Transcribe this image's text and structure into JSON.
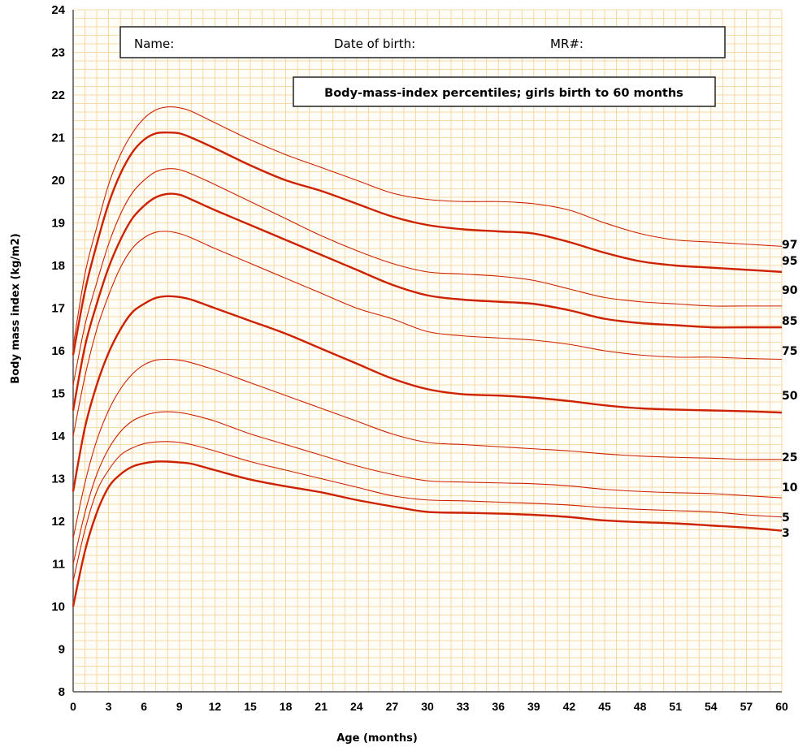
{
  "header": {
    "name_label": "Name:",
    "dob_label": "Date of birth:",
    "mr_label": "MR#:"
  },
  "chart_data": {
    "type": "line",
    "title": "Body-mass-index percentiles; girls birth to 60 months",
    "xlabel": "Age (months)",
    "ylabel": "Body  mass index  (kg/m2)",
    "xlim": [
      0,
      60
    ],
    "ylim": [
      8,
      24
    ],
    "x_ticks": [
      0,
      3,
      6,
      9,
      12,
      15,
      18,
      21,
      24,
      27,
      30,
      33,
      36,
      39,
      42,
      45,
      48,
      51,
      54,
      57,
      60
    ],
    "y_ticks": [
      8,
      9,
      10,
      11,
      12,
      13,
      14,
      15,
      16,
      17,
      18,
      19,
      20,
      21,
      22,
      23,
      24
    ],
    "grid": true,
    "grid_color": "#f5d090",
    "line_color": "#cc2200",
    "x": [
      0,
      1,
      2,
      3,
      4,
      5,
      6,
      7,
      8,
      9,
      10,
      12,
      15,
      18,
      21,
      24,
      27,
      30,
      33,
      36,
      39,
      42,
      45,
      48,
      51,
      54,
      57,
      60
    ],
    "series": [
      {
        "name": "97",
        "bold": false,
        "values": [
          16.1,
          17.8,
          18.9,
          19.9,
          20.6,
          21.1,
          21.45,
          21.65,
          21.72,
          21.7,
          21.62,
          21.35,
          20.95,
          20.6,
          20.3,
          20.0,
          19.7,
          19.55,
          19.5,
          19.5,
          19.45,
          19.3,
          19.0,
          18.75,
          18.6,
          18.55,
          18.5,
          18.45
        ]
      },
      {
        "name": "95",
        "bold": true,
        "values": [
          15.9,
          17.4,
          18.5,
          19.45,
          20.15,
          20.65,
          20.95,
          21.1,
          21.12,
          21.1,
          21.0,
          20.75,
          20.35,
          20.0,
          19.75,
          19.45,
          19.15,
          18.95,
          18.85,
          18.8,
          18.75,
          18.55,
          18.3,
          18.1,
          18.0,
          17.95,
          17.9,
          17.85
        ]
      },
      {
        "name": "90",
        "bold": false,
        "values": [
          15.2,
          16.6,
          17.6,
          18.5,
          19.2,
          19.7,
          20.0,
          20.2,
          20.27,
          20.25,
          20.15,
          19.9,
          19.5,
          19.1,
          18.7,
          18.35,
          18.05,
          17.85,
          17.8,
          17.75,
          17.65,
          17.45,
          17.25,
          17.15,
          17.1,
          17.05,
          17.05,
          17.05
        ]
      },
      {
        "name": "85",
        "bold": true,
        "values": [
          14.6,
          16.1,
          17.1,
          17.95,
          18.6,
          19.1,
          19.4,
          19.6,
          19.68,
          19.66,
          19.55,
          19.3,
          18.95,
          18.6,
          18.25,
          17.9,
          17.55,
          17.3,
          17.2,
          17.15,
          17.1,
          16.95,
          16.75,
          16.65,
          16.6,
          16.55,
          16.55,
          16.55
        ]
      },
      {
        "name": "75",
        "bold": false,
        "values": [
          14.0,
          15.4,
          16.5,
          17.3,
          17.95,
          18.4,
          18.65,
          18.78,
          18.8,
          18.75,
          18.65,
          18.4,
          18.05,
          17.7,
          17.35,
          17.0,
          16.75,
          16.45,
          16.35,
          16.3,
          16.25,
          16.15,
          16.0,
          15.9,
          15.85,
          15.85,
          15.82,
          15.8
        ]
      },
      {
        "name": "50",
        "bold": true,
        "values": [
          12.7,
          14.2,
          15.2,
          15.95,
          16.5,
          16.9,
          17.1,
          17.24,
          17.28,
          17.26,
          17.2,
          17.0,
          16.7,
          16.4,
          16.05,
          15.7,
          15.35,
          15.1,
          14.98,
          14.95,
          14.9,
          14.82,
          14.72,
          14.65,
          14.62,
          14.6,
          14.58,
          14.55
        ]
      },
      {
        "name": "25",
        "bold": false,
        "values": [
          11.6,
          12.9,
          13.9,
          14.6,
          15.1,
          15.45,
          15.67,
          15.78,
          15.8,
          15.78,
          15.72,
          15.55,
          15.25,
          14.95,
          14.65,
          14.35,
          14.05,
          13.85,
          13.8,
          13.75,
          13.7,
          13.65,
          13.58,
          13.53,
          13.5,
          13.48,
          13.45,
          13.45
        ]
      },
      {
        "name": "10",
        "bold": false,
        "values": [
          11.0,
          12.2,
          13.1,
          13.7,
          14.1,
          14.35,
          14.48,
          14.55,
          14.57,
          14.55,
          14.5,
          14.35,
          14.05,
          13.8,
          13.55,
          13.3,
          13.1,
          12.95,
          12.92,
          12.9,
          12.88,
          12.83,
          12.75,
          12.7,
          12.67,
          12.65,
          12.6,
          12.55
        ]
      },
      {
        "name": "5",
        "bold": false,
        "values": [
          10.6,
          11.8,
          12.7,
          13.2,
          13.55,
          13.72,
          13.82,
          13.86,
          13.87,
          13.85,
          13.8,
          13.65,
          13.4,
          13.2,
          13.0,
          12.8,
          12.6,
          12.5,
          12.48,
          12.45,
          12.42,
          12.38,
          12.32,
          12.28,
          12.25,
          12.22,
          12.15,
          12.1
        ]
      },
      {
        "name": "3",
        "bold": true,
        "values": [
          10.0,
          11.3,
          12.2,
          12.8,
          13.1,
          13.28,
          13.36,
          13.4,
          13.4,
          13.38,
          13.35,
          13.2,
          12.98,
          12.82,
          12.68,
          12.5,
          12.35,
          12.22,
          12.2,
          12.18,
          12.15,
          12.1,
          12.02,
          11.98,
          11.95,
          11.9,
          11.85,
          11.78
        ]
      }
    ]
  }
}
